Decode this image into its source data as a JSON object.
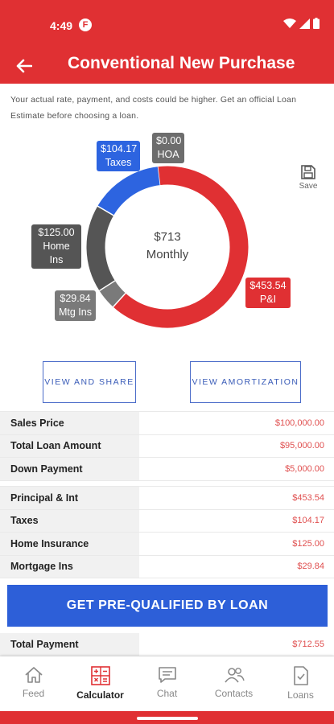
{
  "status_bar": {
    "time": "4:49",
    "app_badge": "F"
  },
  "header": {
    "title": "Conventional New Purchase"
  },
  "disclaimer": "Your actual rate, payment, and costs could be higher. Get an official Loan Estimate before choosing a loan.",
  "chart_data": {
    "type": "pie",
    "center_amount": "$713",
    "center_label": "Monthly",
    "slices": [
      {
        "name": "P&I",
        "amount": "$453.54",
        "value": 453.54,
        "color": "#e03033"
      },
      {
        "name": "Mtg Ins",
        "amount": "$29.84",
        "value": 29.84,
        "color": "#7a7a7a"
      },
      {
        "name": "Home Ins",
        "amount": "$125.00",
        "value": 125.0,
        "color": "#555555"
      },
      {
        "name": "Taxes",
        "amount": "$104.17",
        "value": 104.17,
        "color": "#2d64e0"
      },
      {
        "name": "HOA",
        "amount": "$0.00",
        "value": 0.0,
        "color": "#6d6d6d"
      }
    ]
  },
  "save_label": "Save",
  "buttons": {
    "view_share": "VIEW AND SHARE",
    "view_amortization": "VIEW AMORTIZATION"
  },
  "loan_table": [
    {
      "label": "Sales Price",
      "value": "$100,000.00"
    },
    {
      "label": "Total Loan Amount",
      "value": "$95,000.00"
    },
    {
      "label": "Down Payment",
      "value": "$5,000.00"
    }
  ],
  "payment_table": [
    {
      "label": "Principal & Int",
      "value": "$453.54"
    },
    {
      "label": "Taxes",
      "value": "$104.17"
    },
    {
      "label": "Home Insurance",
      "value": "$125.00"
    },
    {
      "label": "Mortgage Ins",
      "value": "$29.84"
    }
  ],
  "cta_label": "GET PRE-QUALIFIED BY LOAN",
  "total": {
    "label": "Total Payment",
    "value": "$712.55"
  },
  "nav": [
    {
      "label": "Feed",
      "icon": "home-icon"
    },
    {
      "label": "Calculator",
      "icon": "calculator-icon"
    },
    {
      "label": "Chat",
      "icon": "chat-icon"
    },
    {
      "label": "Contacts",
      "icon": "contacts-icon"
    },
    {
      "label": "Loans",
      "icon": "document-check-icon"
    }
  ],
  "colors": {
    "brand_red": "#e03033",
    "accent_blue": "#2d5fd8"
  }
}
